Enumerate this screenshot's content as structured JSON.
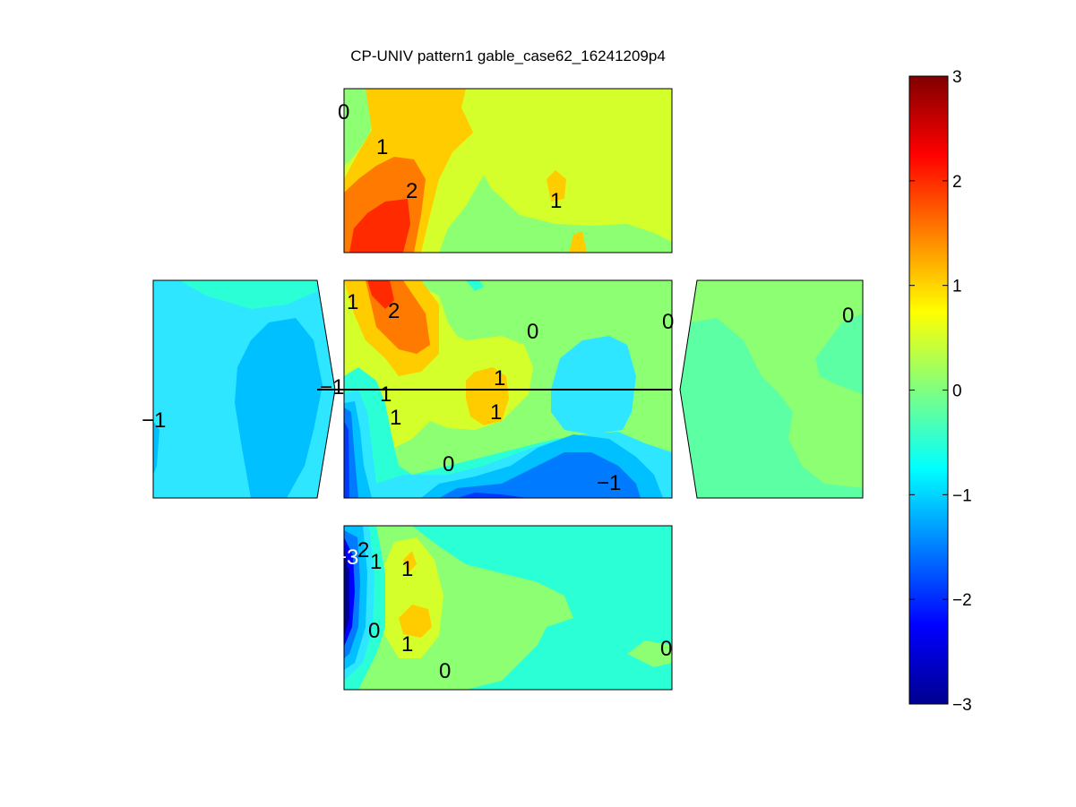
{
  "chart_data": {
    "type": "heatmap",
    "title": "CP-UNIV pattern1 gable_case62_16241209p4",
    "colorbar": {
      "range": [
        -3,
        3
      ],
      "ticks": [
        "3",
        "2",
        "1",
        "0",
        "−1",
        "−2",
        "−3"
      ],
      "colormap": "jet"
    },
    "panels": [
      {
        "name": "top-face",
        "contour_labels": [
          "0",
          "1",
          "2",
          "1"
        ]
      },
      {
        "name": "left-face",
        "contour_labels": [
          "−1"
        ]
      },
      {
        "name": "center-face",
        "contour_labels": [
          "1",
          "2",
          "0",
          "0",
          "−1",
          "1",
          "1",
          "1",
          "1",
          "0",
          "−1"
        ]
      },
      {
        "name": "right-face",
        "contour_labels": [
          "0"
        ]
      },
      {
        "name": "bottom-face",
        "contour_labels": [
          "−3",
          "2",
          "1",
          "1",
          "0",
          "1",
          "0",
          "0"
        ]
      }
    ]
  }
}
